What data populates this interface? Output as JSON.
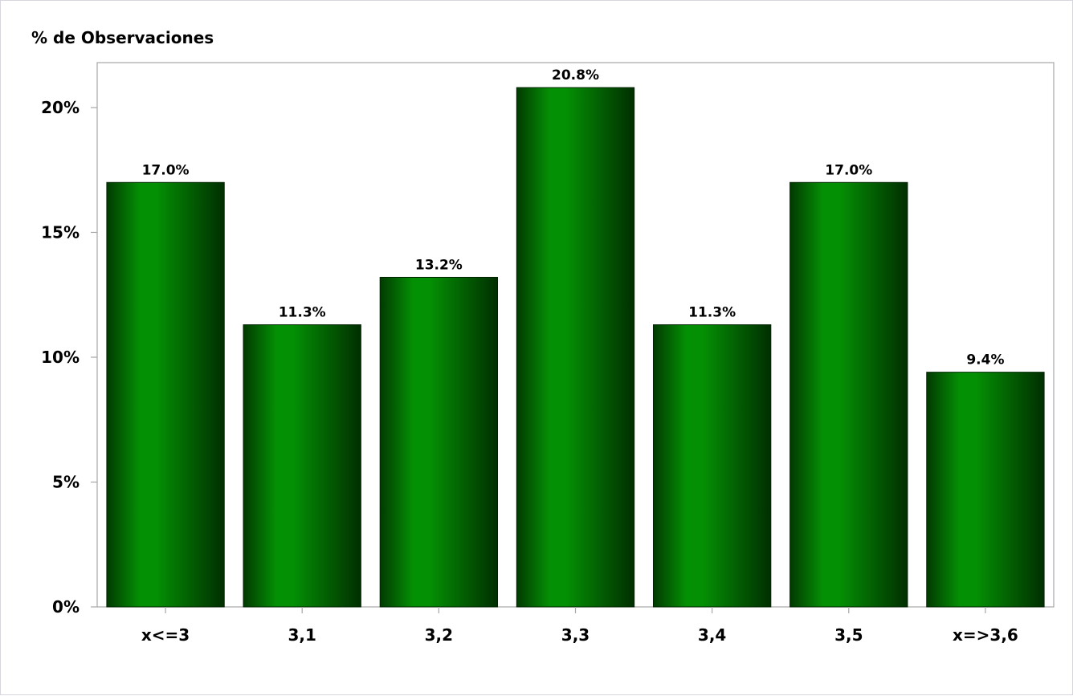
{
  "chart_data": {
    "type": "bar",
    "ylabel": "% de Observaciones",
    "xlabel": "",
    "categories": [
      "x<=3",
      "3,1",
      "3,2",
      "3,3",
      "3,4",
      "3,5",
      "x=>3,6"
    ],
    "values": [
      17.0,
      11.3,
      13.2,
      20.8,
      11.3,
      17.0,
      9.4
    ],
    "data_labels": [
      "17.0%",
      "11.3%",
      "13.2%",
      "20.8%",
      "11.3%",
      "17.0%",
      "9.4%"
    ],
    "ylim": [
      0,
      21.8
    ],
    "yticks": [
      0,
      5,
      10,
      15,
      20
    ],
    "ytick_labels": [
      "0%",
      "5%",
      "10%",
      "15%",
      "20%"
    ],
    "grid": false,
    "bar_colors": {
      "light": "#049004",
      "dark": "#013a01"
    },
    "frame_color": "#a6a6a6"
  }
}
